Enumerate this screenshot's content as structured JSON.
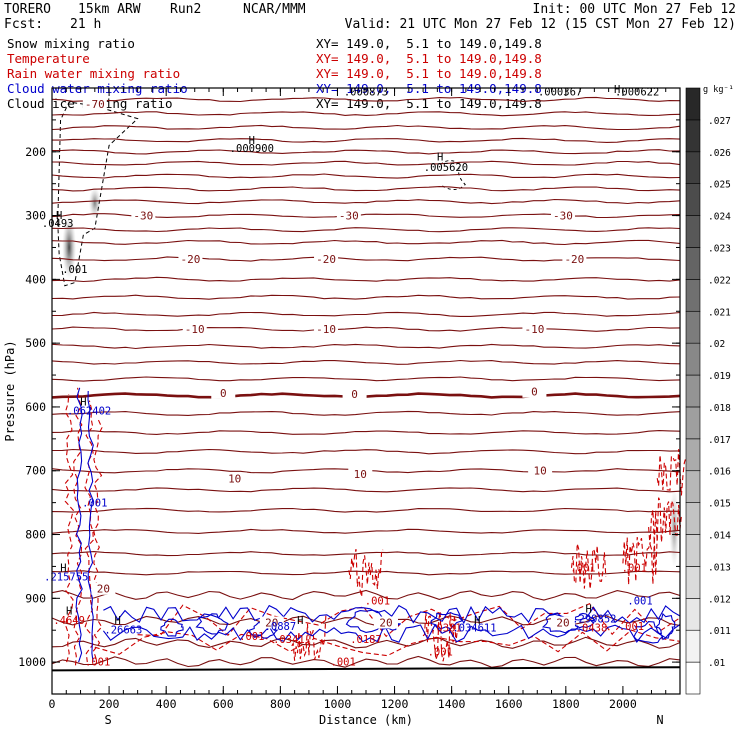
{
  "header": {
    "model": "TORERO",
    "resolution": "15km ARW",
    "run": "Run2",
    "org": "NCAR/MMM",
    "init": "Init: 00 UTC Mon 27 Feb 12",
    "fcst_label": "Fcst:",
    "fcst_value": "21 h",
    "valid": "Valid: 21 UTC Mon 27 Feb 12 (15 CST Mon 27 Feb 12)"
  },
  "legend": [
    {
      "label": "Snow mixing ratio",
      "color": "#000000",
      "xy": ""
    },
    {
      "label": "Temperature",
      "color": "#cc0000",
      "xy": "XY= 149.0,  5.1 to 149.0,149.8"
    },
    {
      "label": "Rain water mixing ratio",
      "color": "#cc0000",
      "xy": "XY= 149.0,  5.1 to 149.0,149.8"
    },
    {
      "label": "Cloud water mixing ratio",
      "color": "#0000cc",
      "xy": "XY= 149.0,  5.1 to 149.0,149.8"
    },
    {
      "label": "Cloud ice mixing ratio",
      "color": "#000000",
      "xy": "XY= 149.0,  5.1 to 149.0,149.8"
    }
  ],
  "xy_top": "XY= 149.0,  5.1 to 149.0,149.8",
  "chart_data": {
    "type": "contour cross-section",
    "xlabel": "Distance (km)",
    "ylabel": "Pressure (hPa)",
    "xlim": [
      0,
      2200
    ],
    "ylim": [
      1050,
      100
    ],
    "x_ticks": [
      0,
      200,
      400,
      600,
      800,
      1000,
      1200,
      1400,
      1600,
      1800,
      2000
    ],
    "y_ticks": [
      200,
      300,
      400,
      500,
      600,
      700,
      800,
      900,
      1000
    ],
    "x_end_labels": {
      "left": "S",
      "right": "N"
    },
    "colorbar": {
      "unit": "g kg⁻¹",
      "ticks": [
        ".01",
        ".011",
        ".012",
        ".013",
        ".014",
        ".015",
        ".016",
        ".017",
        ".018",
        ".019",
        ".02",
        ".021",
        ".022",
        ".023",
        ".024",
        ".025",
        ".026",
        ".027"
      ]
    },
    "temperature_contours": {
      "pressures": [
        118,
        140,
        162,
        182,
        200,
        218,
        238,
        258,
        278,
        300,
        322,
        342,
        368,
        400,
        428,
        455,
        478,
        505,
        530,
        556,
        582,
        610,
        640,
        670,
        700,
        730,
        762,
        795,
        830,
        860,
        895,
        935,
        970,
        1000
      ],
      "labels": [
        {
          "text": "-70",
          "x": 150,
          "p": 125
        },
        {
          "text": "-30",
          "x": 320,
          "p": 300
        },
        {
          "text": "-30",
          "x": 1040,
          "p": 300
        },
        {
          "text": "-30",
          "x": 1790,
          "p": 300
        },
        {
          "text": "-20",
          "x": 485,
          "p": 368
        },
        {
          "text": "-20",
          "x": 960,
          "p": 368
        },
        {
          "text": "-20",
          "x": 1830,
          "p": 368
        },
        {
          "text": "-10",
          "x": 500,
          "p": 478
        },
        {
          "text": "-10",
          "x": 960,
          "p": 478
        },
        {
          "text": "-10",
          "x": 1690,
          "p": 478
        },
        {
          "text": "0",
          "x": 600,
          "p": 578
        },
        {
          "text": "0",
          "x": 1060,
          "p": 580
        },
        {
          "text": "0",
          "x": 1690,
          "p": 576
        },
        {
          "text": "10",
          "x": 640,
          "p": 712
        },
        {
          "text": "10",
          "x": 1080,
          "p": 705
        },
        {
          "text": "10",
          "x": 1710,
          "p": 700
        },
        {
          "text": "20",
          "x": 180,
          "p": 885
        },
        {
          "text": "20",
          "x": 770,
          "p": 938
        },
        {
          "text": "20",
          "x": 1170,
          "p": 938
        },
        {
          "text": "20",
          "x": 1790,
          "p": 938
        }
      ]
    },
    "max_labels": [
      {
        "text": ".000900",
        "x": 700,
        "p": 200,
        "color": "#000000"
      },
      {
        "text": ".005620",
        "x": 1380,
        "p": 230,
        "color": "#000000"
      },
      {
        "text": ".000873",
        "x": 1100,
        "p": 112,
        "color": "#000000"
      },
      {
        "text": ".000367",
        "x": 1780,
        "p": 112,
        "color": "#000000"
      },
      {
        "text": ".000622",
        "x": 2050,
        "p": 112,
        "color": "#000000"
      },
      {
        "text": ".0493",
        "x": 20,
        "p": 318,
        "color": "#000000"
      },
      {
        "text": ".001",
        "x": 80,
        "p": 390,
        "color": "#000000"
      },
      {
        "text": ".062402",
        "x": 130,
        "p": 612,
        "color": "#0000cc"
      },
      {
        "text": ".001",
        "x": 150,
        "p": 756,
        "color": "#0000cc"
      },
      {
        "text": ".215755",
        "x": 50,
        "p": 872,
        "color": "#0000cc"
      },
      {
        "text": ".4649",
        "x": 60,
        "p": 940,
        "color": "#cc0000"
      },
      {
        "text": ".26663",
        "x": 250,
        "p": 955,
        "color": "#0000cc"
      },
      {
        "text": ".0887",
        "x": 800,
        "p": 950,
        "color": "#0000cc"
      },
      {
        "text": ".0341",
        "x": 830,
        "p": 970,
        "color": "#cc0000"
      },
      {
        "text": ".0187",
        "x": 1100,
        "p": 970,
        "color": "#cc0000"
      },
      {
        "text": ".0381",
        "x": 1380,
        "p": 952,
        "color": "#cc0000"
      },
      {
        "text": ".034611",
        "x": 1480,
        "p": 952,
        "color": "#0000cc"
      },
      {
        "text": ".299852",
        "x": 1900,
        "p": 938,
        "color": "#0000cc"
      },
      {
        "text": ".0438",
        "x": 1890,
        "p": 952,
        "color": "#cc0000"
      },
      {
        "text": ".001",
        "x": 1140,
        "p": 910,
        "color": "#cc0000"
      },
      {
        "text": ".001",
        "x": 1860,
        "p": 858,
        "color": "#cc0000"
      },
      {
        "text": ".001",
        "x": 2040,
        "p": 858,
        "color": "#cc0000"
      },
      {
        "text": ".001",
        "x": 2060,
        "p": 910,
        "color": "#0000cc"
      },
      {
        "text": ".001",
        "x": 1360,
        "p": 990,
        "color": "#cc0000"
      },
      {
        "text": ".001",
        "x": 1020,
        "p": 1005,
        "color": "#cc0000"
      },
      {
        "text": ".001",
        "x": 160,
        "p": 1005,
        "color": "#cc0000"
      },
      {
        "text": ".001",
        "x": 700,
        "p": 965,
        "color": "#cc0000"
      },
      {
        "text": ".001",
        "x": 2030,
        "p": 950,
        "color": "#cc0000"
      }
    ],
    "high_markers": [
      {
        "x": 700,
        "p": 188
      },
      {
        "x": 1360,
        "p": 214
      },
      {
        "x": 25,
        "p": 305
      },
      {
        "x": 110,
        "p": 598
      },
      {
        "x": 40,
        "p": 858
      },
      {
        "x": 1980,
        "p": 108
      },
      {
        "x": 230,
        "p": 940
      },
      {
        "x": 870,
        "p": 940
      },
      {
        "x": 1490,
        "p": 940
      },
      {
        "x": 1880,
        "p": 922
      },
      {
        "x": 60,
        "p": 925
      }
    ]
  }
}
